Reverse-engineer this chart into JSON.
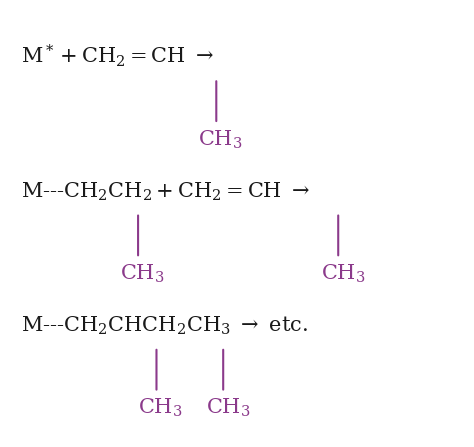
{
  "background_color": "#ffffff",
  "text_color": "#1a1a1a",
  "branch_color": "#8B3A8B",
  "fig_width": 4.74,
  "fig_height": 4.47,
  "dpi": 100
}
